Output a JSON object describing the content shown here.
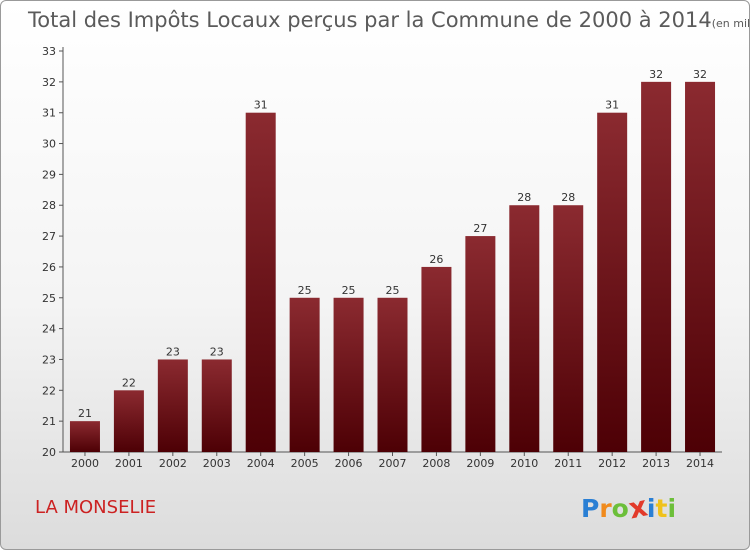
{
  "header": {
    "title": "Total des Impôts Locaux perçus par la Commune de 2000 à 2014",
    "subtitle": "(en milliers d'€)"
  },
  "footer": {
    "commune": "LA MONSELIE",
    "logo_letters": [
      "P",
      "r",
      "o",
      "x",
      "i",
      "t",
      "i"
    ],
    "logo_colors": [
      "#2a7fd4",
      "#f08a1c",
      "#6cbf3a",
      "#e23a2a",
      "#2a7fd4",
      "#f0c21c",
      "#6cbf3a"
    ]
  },
  "chart_data": {
    "type": "bar",
    "title": "Total des Impôts Locaux perçus par la Commune de 2000 à 2014",
    "subtitle": "(en milliers d'€)",
    "categories": [
      "2000",
      "2001",
      "2002",
      "2003",
      "2004",
      "2005",
      "2006",
      "2007",
      "2008",
      "2009",
      "2010",
      "2011",
      "2012",
      "2013",
      "2014"
    ],
    "values": [
      21,
      22,
      23,
      23,
      31,
      25,
      25,
      25,
      26,
      27,
      28,
      28,
      31,
      32,
      32
    ],
    "ylim": [
      20,
      33
    ],
    "yticks": [
      20,
      21,
      22,
      23,
      24,
      25,
      26,
      27,
      28,
      29,
      30,
      31,
      32,
      33
    ],
    "grid": false,
    "bar_color_top": "#8b2a30",
    "bar_color_bottom": "#4d0005"
  }
}
